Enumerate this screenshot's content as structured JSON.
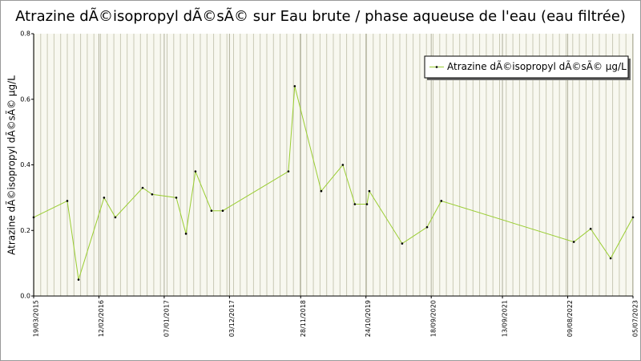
{
  "chart_data": {
    "type": "line",
    "title": "Atrazine dÃ©isopropyl dÃ©sÃ© sur Eau brute / phase aqueuse de l'eau (eau filtrée)",
    "y_label": "Atrazine dÃ©isopropyl dÃ©sÃ© µg/L",
    "x": [
      "2015-03-19",
      "2015-09-05",
      "2015-11-01",
      "2016-03-09",
      "2016-05-05",
      "2016-09-20",
      "2016-11-07",
      "2017-03-09",
      "2017-04-27",
      "2017-06-14",
      "2017-09-03",
      "2017-10-30",
      "2018-09-27",
      "2018-10-29",
      "2019-03-12",
      "2019-06-29",
      "2019-08-29",
      "2019-10-29",
      "2019-11-10",
      "2020-04-24",
      "2020-08-28",
      "2020-11-08",
      "2022-09-09",
      "2022-12-03",
      "2023-03-14",
      "2023-07-05"
    ],
    "series": [
      {
        "name": "Atrazine dÃ©isopropyl dÃ©sÃ© µg/L",
        "color": "#9acd32",
        "values": [
          0.24,
          0.29,
          0.05,
          0.3,
          0.24,
          0.33,
          0.31,
          0.3,
          0.19,
          0.38,
          0.26,
          0.26,
          0.38,
          0.64,
          0.32,
          0.4,
          0.28,
          0.28,
          0.32,
          0.16,
          0.21,
          0.29,
          0.165,
          0.205,
          0.115,
          0.24
        ]
      }
    ],
    "xlim": [
      "2015-03-19",
      "2023-07-05"
    ],
    "xticks": [
      {
        "value": "2015-03-19",
        "label": "19/03/2015"
      },
      {
        "value": "2016-02-12",
        "label": "12/02/2016"
      },
      {
        "value": "2017-01-07",
        "label": "07/01/2017"
      },
      {
        "value": "2017-12-03",
        "label": "03/12/2017"
      },
      {
        "value": "2018-11-28",
        "label": "28/11/2018"
      },
      {
        "value": "2019-10-24",
        "label": "24/10/2019"
      },
      {
        "value": "2020-09-18",
        "label": "18/09/2020"
      },
      {
        "value": "2021-09-13",
        "label": "13/09/2021"
      },
      {
        "value": "2022-08-09",
        "label": "09/08/2022"
      },
      {
        "value": "2023-07-05",
        "label": "05/07/2023"
      }
    ],
    "ylim": [
      0,
      0.8
    ],
    "yticks": [
      {
        "value": 0,
        "label": "0.0"
      },
      0.2,
      0.4,
      0.6,
      0.8
    ],
    "grid": "x",
    "legend": "top-right"
  }
}
